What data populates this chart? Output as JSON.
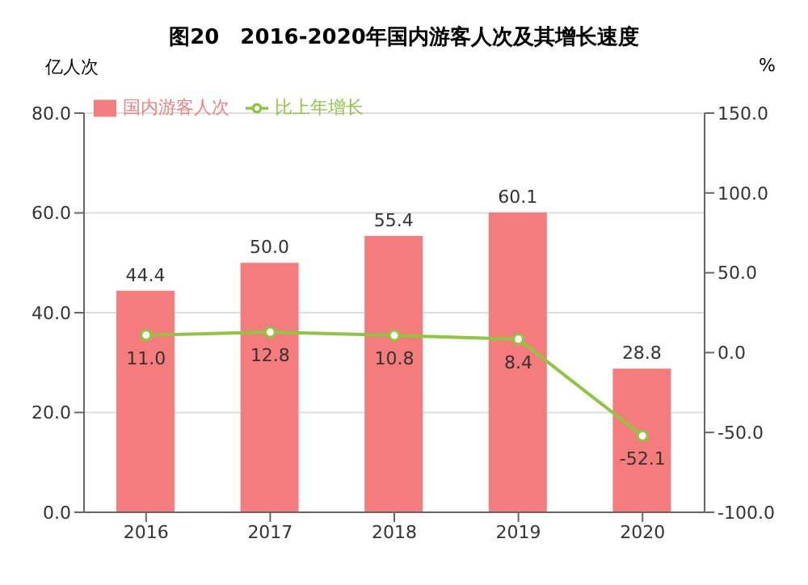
{
  "chart_data": {
    "type": "bar",
    "title": "图20　2016-2020年国内游客人次及其增长速度",
    "ylabel": "亿人次",
    "y2label": "%",
    "categories": [
      "2016",
      "2017",
      "2018",
      "2019",
      "2020"
    ],
    "series": [
      {
        "name": "国内游客人次",
        "color": "#f47c7c",
        "values": [
          44.4,
          50.0,
          55.4,
          60.1,
          28.8
        ],
        "value_labels": [
          "44.4",
          "50.0",
          "55.4",
          "60.1",
          "28.8"
        ]
      },
      {
        "name": "比上年增长",
        "type": "line",
        "axis": "y2",
        "color": "#8dc63f",
        "marker": "circle",
        "values": [
          11.0,
          12.8,
          10.8,
          8.4,
          -52.1
        ],
        "value_labels": [
          "11.0",
          "12.8",
          "10.8",
          "8.4",
          "-52.1"
        ]
      }
    ],
    "ylim": [
      0,
      80
    ],
    "yticks": [
      {
        "value": 0,
        "label": "0.0"
      },
      {
        "value": 20,
        "label": "20.0"
      },
      {
        "value": 40,
        "label": "40.0"
      },
      {
        "value": 60,
        "label": "60.0"
      },
      {
        "value": 80,
        "label": "80.0"
      }
    ],
    "y2lim": [
      -100,
      150
    ],
    "y2ticks": [
      {
        "value": -100,
        "label": "-100.0"
      },
      {
        "value": -50,
        "label": "-50.0"
      },
      {
        "value": 0,
        "label": "0.0"
      },
      {
        "value": 50,
        "label": "50.0"
      },
      {
        "value": 100,
        "label": "100.0"
      },
      {
        "value": 150,
        "label": "150.0"
      }
    ],
    "grid": "y",
    "legend": "top left"
  }
}
